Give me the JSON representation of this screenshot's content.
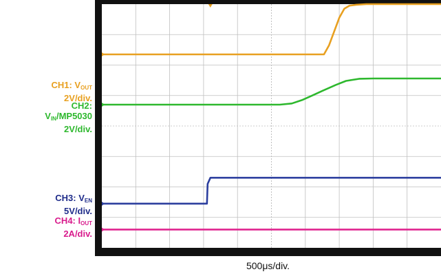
{
  "colors": {
    "ch1": "#E8A020",
    "ch2": "#2EB82E",
    "ch3": "#2B3E9E",
    "ch4": "#E0248F",
    "ch3_label": "#1F2C8A",
    "ch4_label": "#D81B8C",
    "grid_bg": "#FFFFFF",
    "grid_line": "#BFBFBF",
    "frame": "#111111"
  },
  "channel_labels": {
    "ch1": {
      "prefix": "CH1: V",
      "sub": "OUT",
      "scale": "2V/div."
    },
    "ch2": {
      "prefix": "CH2:",
      "line2_main": "V",
      "line2_sub": "IN",
      "line2_rest": "/MP5030",
      "scale": "2V/div."
    },
    "ch3": {
      "prefix": "CH3: V",
      "sub": "EN",
      "scale": "5V/div."
    },
    "ch4": {
      "prefix": "CH4: I",
      "sub": "OUT",
      "scale": "2A/div."
    }
  },
  "time_base": "500μs/div.",
  "chart_data": {
    "type": "line",
    "title": "",
    "x_divisions": 10,
    "y_divisions": 8,
    "x_unit": "div",
    "y_unit": "div",
    "xlim": [
      0,
      10
    ],
    "ylim": [
      0,
      8
    ],
    "grid": true,
    "series": [
      {
        "name": "CH1",
        "color_key": "ch1",
        "x": [
          0,
          6.55,
          6.7,
          6.85,
          7.0,
          7.15,
          7.3,
          7.5,
          7.8,
          8.2,
          10
        ],
        "y": [
          6.35,
          6.35,
          6.65,
          7.1,
          7.55,
          7.85,
          7.95,
          7.98,
          8.0,
          8.0,
          8.0
        ]
      },
      {
        "name": "CH2",
        "color_key": "ch2",
        "x": [
          0,
          5.25,
          5.6,
          5.9,
          6.2,
          6.5,
          6.9,
          7.2,
          7.6,
          8.0,
          10
        ],
        "y": [
          4.7,
          4.7,
          4.74,
          4.85,
          5.0,
          5.15,
          5.35,
          5.48,
          5.55,
          5.56,
          5.56
        ]
      },
      {
        "name": "CH3",
        "color_key": "ch3",
        "x": [
          0,
          3.1,
          3.12,
          3.2,
          10
        ],
        "y": [
          1.45,
          1.45,
          2.1,
          2.3,
          2.3
        ]
      },
      {
        "name": "CH4",
        "color_key": "ch4",
        "x": [
          0,
          10
        ],
        "y": [
          0.6,
          0.6
        ]
      }
    ]
  }
}
